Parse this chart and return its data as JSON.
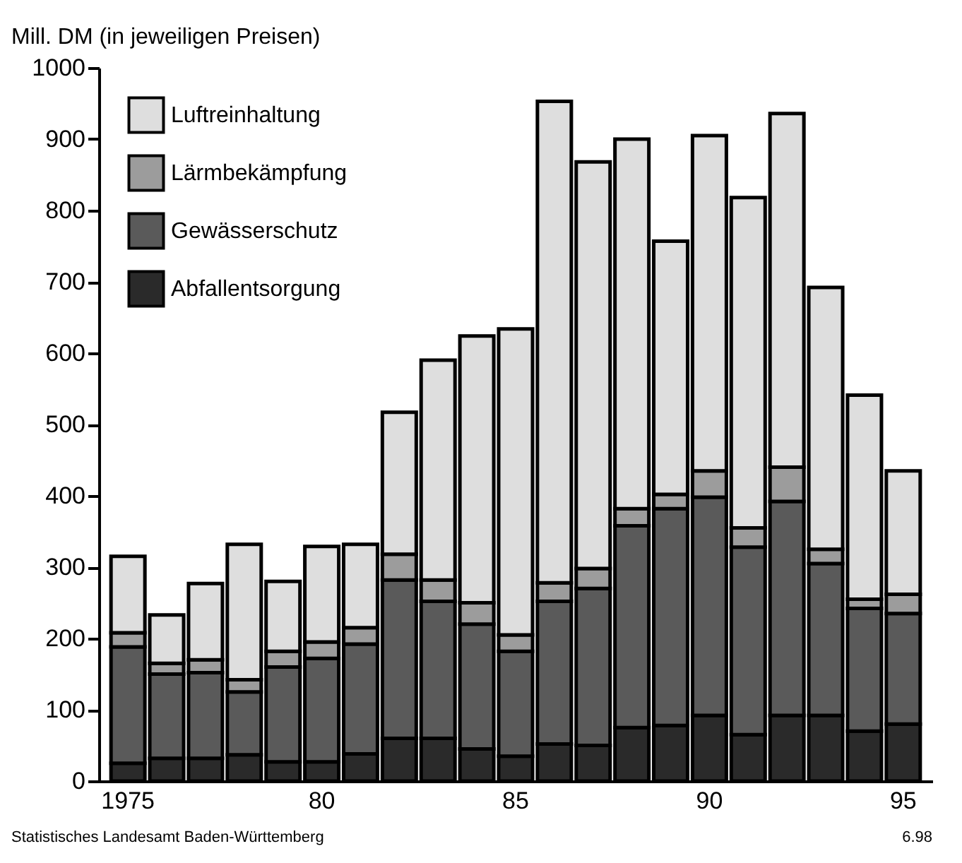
{
  "chart_data": {
    "type": "bar",
    "stacked": true,
    "ylabel": "Mill. DM (in jeweiligen Preisen)",
    "categories": [
      "1975",
      null,
      null,
      null,
      null,
      "80",
      null,
      null,
      null,
      null,
      "85",
      null,
      null,
      null,
      null,
      "90",
      null,
      null,
      null,
      null,
      "95"
    ],
    "series": [
      {
        "name": "Abfallentsorgung",
        "color": "#2a2a2a",
        "values": [
          25,
          32,
          32,
          37,
          27,
          27,
          38,
          60,
          60,
          45,
          35,
          52,
          50,
          75,
          78,
          92,
          65,
          92,
          92,
          70,
          80
        ]
      },
      {
        "name": "Gewässerschutz",
        "color": "#5a5a5a",
        "values": [
          163,
          118,
          120,
          88,
          133,
          145,
          154,
          222,
          192,
          175,
          147,
          200,
          220,
          283,
          304,
          306,
          263,
          300,
          213,
          172,
          155
        ]
      },
      {
        "name": "Lärmbekämpfung",
        "color": "#9c9c9c",
        "values": [
          20,
          15,
          18,
          17,
          22,
          23,
          23,
          36,
          30,
          30,
          23,
          26,
          28,
          24,
          20,
          37,
          27,
          48,
          20,
          13,
          27
        ]
      },
      {
        "name": "Luftreinhaltung",
        "color": "#dedede",
        "values": [
          107,
          68,
          107,
          190,
          98,
          134,
          117,
          199,
          308,
          374,
          429,
          675,
          570,
          518,
          355,
          470,
          463,
          496,
          367,
          286,
          173
        ]
      }
    ],
    "ylim": [
      0,
      1000
    ],
    "yticks": [
      0,
      100,
      200,
      300,
      400,
      500,
      600,
      700,
      800,
      900,
      1000
    ],
    "grid": false,
    "legend": "top left",
    "annotations": [
      "Statistisches Landesamt Baden-Württemberg",
      "6.98"
    ]
  }
}
